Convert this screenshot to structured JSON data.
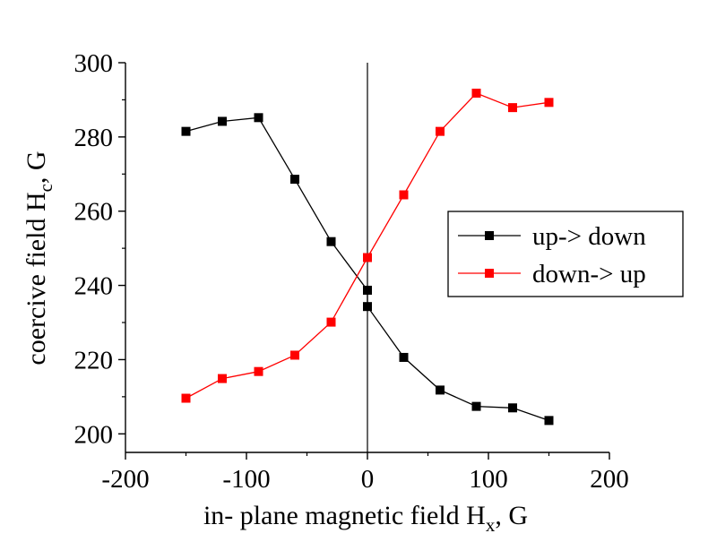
{
  "chart_data": {
    "type": "line",
    "xlabel": {
      "main": "in- plane magnetic field H",
      "sub": "x",
      "tail": ", G"
    },
    "ylabel": {
      "main": "coercive field H",
      "sub": "c",
      "tail": ", G"
    },
    "xlim": [
      -200,
      200
    ],
    "ylim": [
      195,
      300
    ],
    "xticks": [
      -200,
      -100,
      0,
      100,
      200
    ],
    "xtick_labels": [
      "-200",
      "-100",
      "0",
      "100",
      "200"
    ],
    "yticks": [
      200,
      220,
      240,
      260,
      280,
      300
    ],
    "ytick_labels": [
      "200",
      "220",
      "240",
      "260",
      "280",
      "300"
    ],
    "vertical_reference_line": 0,
    "grid": false,
    "legend_position": "middle-right",
    "series": [
      {
        "name": "up-> down",
        "color": "#000000",
        "marker": "square",
        "points": [
          [
            -150,
            281.5
          ],
          [
            -120,
            284.2
          ],
          [
            -90,
            285.2
          ],
          [
            -60,
            268.6
          ],
          [
            -30,
            251.8
          ],
          [
            0,
            238.7
          ],
          [
            0,
            234.3
          ],
          [
            30,
            220.6
          ],
          [
            60,
            211.8
          ],
          [
            90,
            207.4
          ],
          [
            120,
            207.0
          ],
          [
            150,
            203.6
          ]
        ]
      },
      {
        "name": "down-> up",
        "color": "#ff0000",
        "marker": "square",
        "points": [
          [
            -150,
            209.6
          ],
          [
            -120,
            214.9
          ],
          [
            -90,
            216.8
          ],
          [
            -60,
            221.2
          ],
          [
            -30,
            230.1
          ],
          [
            0,
            247.5
          ],
          [
            30,
            264.4
          ],
          [
            60,
            281.5
          ],
          [
            90,
            291.8
          ],
          [
            120,
            287.9
          ],
          [
            150,
            289.3
          ]
        ]
      }
    ]
  }
}
